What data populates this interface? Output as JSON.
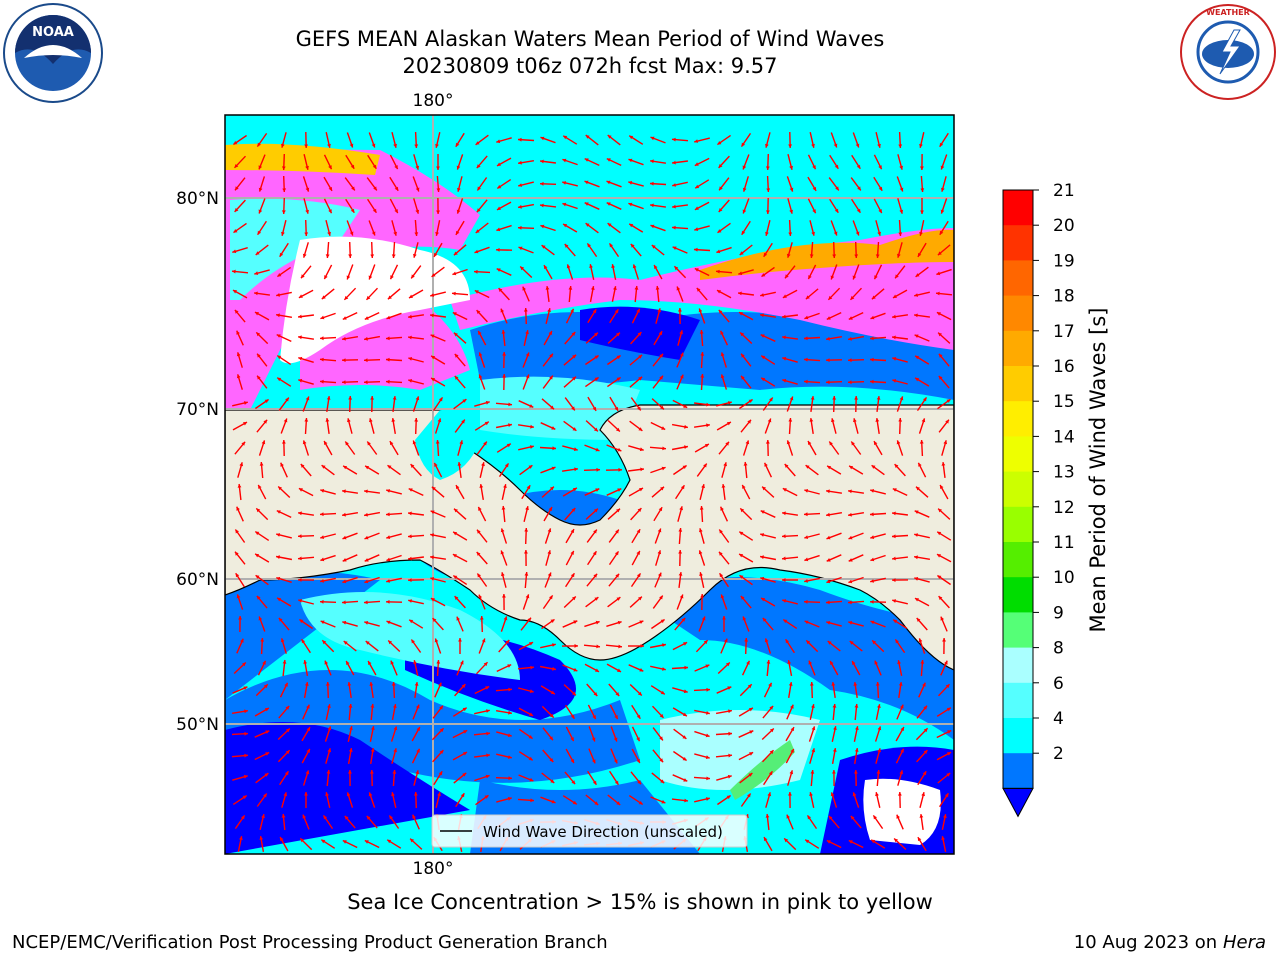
{
  "title_line1": "GEFS MEAN Alaskan Waters Mean Period of Wind Waves",
  "title_line2": "20230809 t06z 072h fcst   Max: 9.57",
  "logos": {
    "left": "noaa-logo",
    "right": "national-weather-service-logo"
  },
  "map": {
    "lon_label_top": "180°",
    "lon_label_bottom": "180°",
    "lat_labels": [
      "80°N",
      "70°N",
      "60°N",
      "50°N"
    ],
    "legend_label": "Wind Wave Direction (unscaled)",
    "colors": {
      "land": "#efedde",
      "ice_pink": "#ff66ff",
      "ice_yellow": "#ffd700",
      "deep": "#0000ff",
      "arrow": "#ff0000"
    }
  },
  "colorbar": {
    "label": "Mean Period of Wind Waves [s]",
    "ticks": [
      "21",
      "20",
      "19",
      "18",
      "17",
      "16",
      "15",
      "14",
      "13",
      "12",
      "11",
      "10",
      "9",
      "8",
      "6",
      "4",
      "2"
    ],
    "colors": [
      "#ff0000",
      "#ff3300",
      "#ff6600",
      "#ff8800",
      "#ffaa00",
      "#ffcc00",
      "#ffee00",
      "#eeff00",
      "#ccff00",
      "#99ff00",
      "#55ee00",
      "#00dd00",
      "#55ff77",
      "#aaffff",
      "#55ffff",
      "#00ffff",
      "#0077ff"
    ],
    "under_color": "#0000ff"
  },
  "note": "Sea Ice Concentration > 15% is shown in pink to yellow",
  "footer_left": "NCEP/EMC/Verification Post Processing Product Generation Branch",
  "footer_date": "10 Aug 2023 on",
  "footer_host": "Hera"
}
